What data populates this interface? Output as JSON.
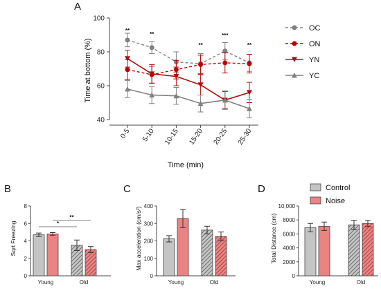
{
  "colors": {
    "OC": "#808080",
    "ON": "#c00000",
    "YN": "#b01010",
    "YC": "#808080",
    "control": "#c4c4c4",
    "noise": "#ec8383",
    "axis": "#444444"
  },
  "legend_bottom": {
    "control": "Control",
    "noise": "Noise"
  },
  "chart_data": [
    {
      "panel": "A",
      "type": "line",
      "xlabel": "Time (min)",
      "ylabel": "Time at bottom (%)",
      "ylim": [
        40,
        100
      ],
      "yticks": [
        "40",
        "60",
        "80",
        "100"
      ],
      "categories": [
        "0-5",
        "5-10",
        "10-15",
        "15-20",
        "20-25",
        "25-30"
      ],
      "legend_position": "right",
      "series": [
        {
          "name": "OC",
          "style": "dashed",
          "marker": "circle",
          "color": "#808080",
          "values": [
            87,
            82.5,
            74,
            73,
            80.5,
            73.5
          ],
          "err": [
            4,
            3.5,
            6,
            6,
            5,
            5
          ]
        },
        {
          "name": "ON",
          "style": "dashed",
          "marker": "circle",
          "color": "#c00000",
          "values": [
            69.5,
            66.5,
            69.5,
            72.5,
            73.5,
            73
          ],
          "err": [
            6,
            5,
            5.5,
            5.5,
            6,
            5.5
          ]
        },
        {
          "name": "YN",
          "style": "solid",
          "marker": "triangle-down",
          "color": "#b01010",
          "values": [
            76,
            67,
            65.5,
            60.5,
            51.5,
            56
          ],
          "err": [
            5,
            5.5,
            5.5,
            6,
            5,
            6
          ]
        },
        {
          "name": "YC",
          "style": "solid",
          "marker": "triangle-up",
          "color": "#808080",
          "values": [
            58,
            54.5,
            54,
            49.5,
            51.5,
            46.5
          ],
          "err": [
            5,
            5,
            5,
            5,
            5.5,
            5.5
          ]
        }
      ],
      "annotations": [
        "**",
        "**",
        "",
        "**",
        "***",
        "**"
      ]
    },
    {
      "panel": "B",
      "type": "bar",
      "ylabel": "Sqrt Freezing",
      "ylim": [
        0,
        8
      ],
      "yticks": [
        "0",
        "2",
        "4",
        "6",
        "8"
      ],
      "groups": [
        "Young",
        "Old"
      ],
      "series": [
        {
          "name": "Control",
          "values": [
            4.7,
            3.5
          ],
          "err": [
            0.2,
            0.6
          ]
        },
        {
          "name": "Noise",
          "values": [
            4.8,
            3.0
          ],
          "err": [
            0.15,
            0.35
          ]
        }
      ],
      "comparisons": [
        {
          "from": "Young Control",
          "to": "Old Control",
          "label": "*"
        },
        {
          "from": "Young Noise",
          "to": "Old Noise",
          "label": "**"
        }
      ]
    },
    {
      "panel": "C",
      "type": "bar",
      "ylabel": "Max acceleration (cm/s²)",
      "ylim": [
        0,
        400
      ],
      "yticks": [
        "0",
        "100",
        "200",
        "300",
        "400"
      ],
      "groups": [
        "Young",
        "Old"
      ],
      "series": [
        {
          "name": "Control",
          "values": [
            212,
            262
          ],
          "err": [
            18,
            22
          ]
        },
        {
          "name": "Noise",
          "values": [
            328,
            226
          ],
          "err": [
            52,
            25
          ]
        }
      ]
    },
    {
      "panel": "D",
      "type": "bar",
      "ylabel": "Total Distance (cm)",
      "ylim": [
        0,
        10000
      ],
      "yticks": [
        "0",
        "2000",
        "4000",
        "6000",
        "8000",
        "10,000"
      ],
      "groups": [
        "Young",
        "Old"
      ],
      "series": [
        {
          "name": "Control",
          "values": [
            6900,
            7300
          ],
          "err": [
            600,
            650
          ]
        },
        {
          "name": "Noise",
          "values": [
            7100,
            7500
          ],
          "err": [
            600,
            450
          ]
        }
      ],
      "legend_position": "top"
    }
  ]
}
